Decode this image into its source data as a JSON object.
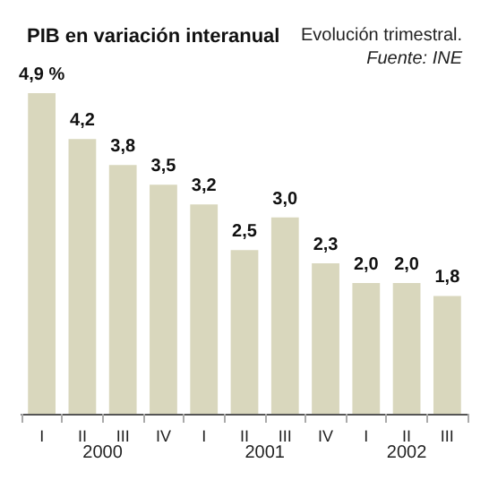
{
  "chart_data": {
    "type": "bar",
    "title": "PIB en variación interanual",
    "subtitle": "Evolución trimestral.",
    "annotations": [
      "Fuente: INE",
      "2000",
      "2001",
      "2002"
    ],
    "categories": [
      "I",
      "II",
      "III",
      "IV",
      "I",
      "II",
      "III",
      "IV",
      "I",
      "II",
      "III"
    ],
    "values": [
      4.9,
      4.2,
      3.8,
      3.5,
      3.2,
      2.5,
      3.0,
      2.3,
      2.0,
      2.0,
      1.8
    ],
    "value_labels": [
      "4,9 %",
      "4,2",
      "3,8",
      "3,5",
      "3,2",
      "2,5",
      "3,0",
      "2,3",
      "2,0",
      "2,0",
      "1,8"
    ],
    "color": "#d9d7bd"
  }
}
